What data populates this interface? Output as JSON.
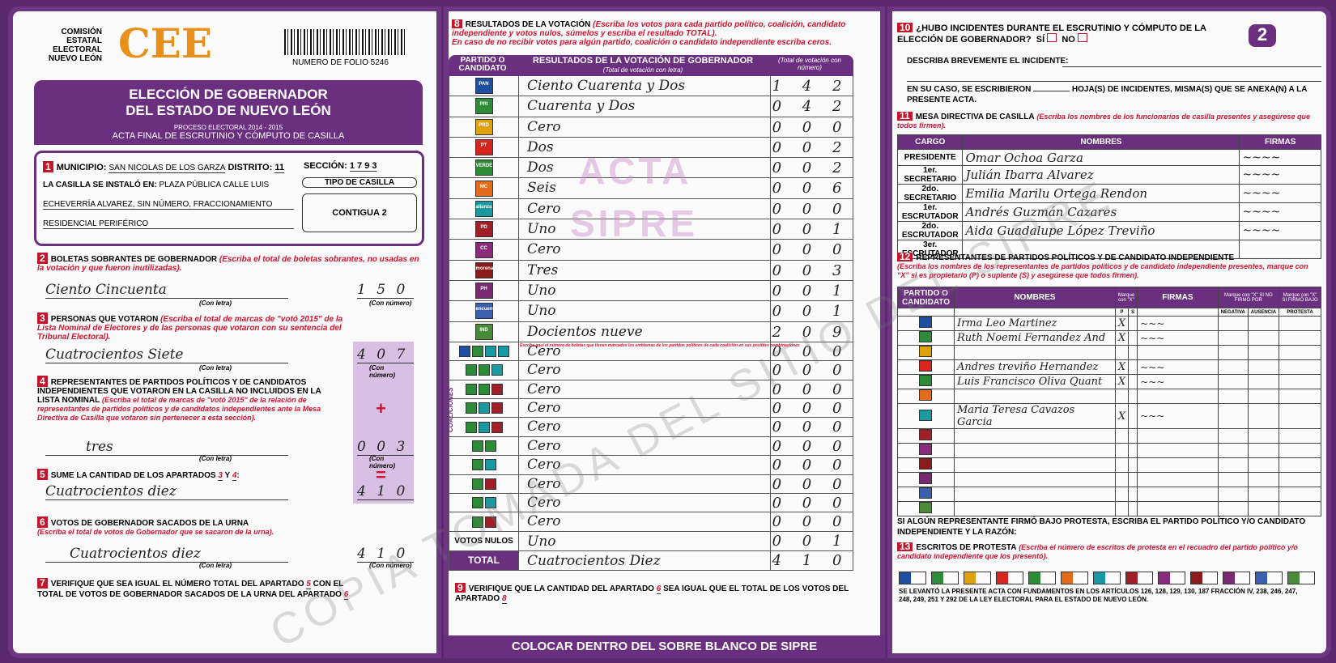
{
  "header": {
    "org": "COMISIÓN ESTATAL ELECTORAL NUEVO LEÓN",
    "logo": "CEE",
    "folio": "NUMERO DE FOLIO 5246",
    "title1": "ELECCIÓN DE GOBERNADOR",
    "title2": "DEL ESTADO DE NUEVO LEÓN",
    "process": "PROCESO ELECTORAL 2014 - 2015",
    "subtitle": "ACTA FINAL DE ESCRUTINIO Y CÓMPUTO DE CASILLA",
    "page_number": "2"
  },
  "s1": {
    "n": "1",
    "municipio_label": "MUNICIPIO:",
    "municipio": "SAN NICOLAS DE LOS GARZA",
    "distrito_label": "DISTRITO:",
    "distrito": "11",
    "seccion_label": "SECCIÓN:",
    "seccion": "1 7 9 3",
    "lugar_label": "LA CASILLA SE INSTALÓ EN:",
    "lugar1": "PLAZA PÚBLICA CALLE LUIS",
    "lugar2": "ECHEVERRÍA ALVAREZ, SIN NÚMERO, FRACCIONAMIENTO",
    "lugar3": "RESIDENCIAL PERIFÉRICO",
    "tipo_label": "TIPO DE CASILLA",
    "tipo": "CONTIGUA 2"
  },
  "s2": {
    "n": "2",
    "title": "BOLETAS SOBRANTES DE GOBERNADOR",
    "note": "(Escriba el total de boletas sobrantes, no usadas en la votación y que fueron inutilizadas).",
    "letra": "Ciento Cincuenta",
    "numero": "1 5 0"
  },
  "s3": {
    "n": "3",
    "title": "PERSONAS QUE VOTARON",
    "note": "(Escriba el total de marcas de \"votó 2015\" de la Lista Nominal de Electores y de las personas que votaron con su sentencia del Tribunal Electoral).",
    "letra": "Cuatrocientos Siete",
    "numero": "4 0 7"
  },
  "s4": {
    "n": "4",
    "title": "REPRESENTANTES DE PARTIDOS POLÍTICOS Y DE CANDIDATOS INDEPENDIENTES QUE VOTARON EN LA CASILLA NO INCLUIDOS EN LA LISTA NOMINAL",
    "note": "(Escriba el total de marcas de \"votó 2015\" de la relación de representantes de partidos políticos y de candidatos independientes ante la Mesa Directiva de Casilla que votaron sin pertenecer a esta sección).",
    "letra": "tres",
    "numero": "0 0 3",
    "plus": "+",
    "equals": "="
  },
  "s5": {
    "n": "5",
    "title": "SUME LA CANTIDAD DE LOS APARTADOS",
    "a": "3",
    "y": "Y",
    "b": "4",
    "letra": "Cuatrocientos diez",
    "numero": "4 1 0"
  },
  "s6": {
    "n": "6",
    "title": "VOTOS DE GOBERNADOR SACADOS DE LA URNA",
    "note": "(Escriba el total de votos de Gobernador que se sacaron de la urna).",
    "letra": "Cuatrocientos diez",
    "numero": "4 1 0"
  },
  "s7": {
    "n": "7",
    "text1": "VERIFIQUE QUE SEA IGUAL EL NÚMERO TOTAL DEL APARTADO",
    "a": "5",
    "text2": "CON EL TOTAL DE VOTOS DE GOBERNADOR SACADOS DE LA URNA DEL APARTADO",
    "b": "6"
  },
  "labels": {
    "con_letra": "(Con letra)",
    "con_numero": "(Con número)"
  },
  "s8": {
    "n": "8",
    "title": "RESULTADOS DE LA VOTACIÓN",
    "note": "(Escriba los votos para cada partido político, coalición, candidato independiente y votos nulos, súmelos y escriba el resultado TOTAL).",
    "note2": "En caso de no recibir votos para algún partido, coalición o candidato independiente escriba ceros.",
    "col1": "PARTIDO O CANDIDATO",
    "col2": "RESULTADOS DE LA VOTACIÓN DE GOBERNADOR",
    "col2sub": "(Total de votación con letra)",
    "col3": "(Total de votación con número)",
    "coaliciones": "COALICIONES",
    "coal_note": "Escriba aquí el número de boletas que tienen marcados los emblemas de los partidos políticos de cada coalición en sus posibles combinaciones",
    "parties": [
      {
        "icon": "pan-logo",
        "label": "PAN",
        "color": "#1f4fa0",
        "letra": "Ciento Cuarenta y Dos",
        "numero": "1 4 2"
      },
      {
        "icon": "pri-logo",
        "label": "PRI",
        "color": "#2f8a3a",
        "letra": "Cuarenta y Dos",
        "numero": "0 4 2"
      },
      {
        "icon": "prd-logo",
        "label": "PRD",
        "color": "#e0a10f",
        "letra": "Cero",
        "numero": "0 0 0"
      },
      {
        "icon": "pt-logo",
        "label": "PT",
        "color": "#d8261e",
        "letra": "Dos",
        "numero": "0 0 2"
      },
      {
        "icon": "verde-logo",
        "label": "VERDE",
        "color": "#2c8b35",
        "letra": "Dos",
        "numero": "0 0 2"
      },
      {
        "icon": "mc-logo",
        "label": "MC",
        "color": "#e36b1b",
        "letra": "Seis",
        "numero": "0 0 6"
      },
      {
        "icon": "nueva-alianza-logo",
        "label": "alianza",
        "color": "#1a9aa0",
        "letra": "Cero",
        "numero": "0 0 0"
      },
      {
        "icon": "pd-logo",
        "label": "PD",
        "color": "#a0202a",
        "letra": "Uno",
        "numero": "0 0 1"
      },
      {
        "icon": "cc-logo",
        "label": "CC",
        "color": "#8a2a7a",
        "letra": "Cero",
        "numero": "0 0 0"
      },
      {
        "icon": "morena-logo",
        "label": "morena",
        "color": "#8b1a1a",
        "letra": "Tres",
        "numero": "0 0 3"
      },
      {
        "icon": "ph-logo",
        "label": "PH",
        "color": "#7a2a70",
        "letra": "Uno",
        "numero": "0 0 1"
      },
      {
        "icon": "encuentro-social-logo",
        "label": "encuentro",
        "color": "#3a5fae",
        "letra": "Uno",
        "numero": "0 0 1"
      },
      {
        "icon": "independiente-logo",
        "label": "IND",
        "color": "#4a8a3a",
        "letra": "Docientos nueve",
        "numero": "2 0 9"
      }
    ],
    "coalitions": [
      {
        "letra": "Cero",
        "numero": "0 0 0"
      },
      {
        "letra": "Cero",
        "numero": "0 0 0"
      },
      {
        "letra": "Cero",
        "numero": "0 0 0"
      },
      {
        "letra": "Cero",
        "numero": "0 0 0"
      },
      {
        "letra": "Cero",
        "numero": "0 0 0"
      },
      {
        "letra": "Cero",
        "numero": "0 0 0"
      },
      {
        "letra": "Cero",
        "numero": "0 0 0"
      },
      {
        "letra": "Cero",
        "numero": "0 0 0"
      },
      {
        "letra": "Cero",
        "numero": "0 0 0"
      },
      {
        "letra": "Cero",
        "numero": "0 0 0"
      }
    ],
    "nulos_label": "VOTOS NULOS",
    "nulos_letra": "Uno",
    "nulos_numero": "0 0 1",
    "total_label": "TOTAL",
    "total_letra": "Cuatrocientos Diez",
    "total_numero": "4 1 0"
  },
  "s9": {
    "n": "9",
    "text1": "VERIFIQUE QUE LA CANTIDAD DEL APARTADO",
    "a": "6",
    "text2": "SEA IGUAL QUE EL TOTAL DE LOS VOTOS DEL APARTADO",
    "b": "8"
  },
  "footer": "COLOCAR DENTRO DEL SOBRE BLANCO DE SIPRE",
  "watermark": {
    "acta": "ACTA",
    "sipre": "SIPRE",
    "copy": "COPIA TOMADA DEL SITIO DEL SIPRE"
  },
  "s10": {
    "n": "10",
    "q": "¿HUBO INCIDENTES DURANTE EL ESCRUTINIO Y CÓMPUTO DE LA ELECCIÓN DE GOBERNADOR?",
    "si": "SÍ",
    "no": "NO",
    "describe": "DESCRIBA BREVEMENTE EL INCIDENTE:",
    "hojas1": "EN SU CASO, SE ESCRIBIERON",
    "hojas_sub": "(Con número)",
    "hojas2": "HOJA(S) DE INCIDENTES, MISMA(S) QUE SE ANEXA(N) A LA PRESENTE ACTA."
  },
  "s11": {
    "n": "11",
    "title": "MESA DIRECTIVA DE CASILLA",
    "note": "(Escriba los nombres de los funcionarios de casilla presentes y asegúrese que todos firmen).",
    "cols": [
      "CARGO",
      "NOMBRES",
      "FIRMAS"
    ],
    "rows": [
      {
        "cargo": "PRESIDENTE",
        "nombre": "Omar Ochoa Garza"
      },
      {
        "cargo": "1er. SECRETARIO",
        "nombre": "Julián Ibarra Alvarez"
      },
      {
        "cargo": "2do. SECRETARIO",
        "nombre": "Emilia Marilu Ortega Rendon"
      },
      {
        "cargo": "1er. ESCRUTADOR",
        "nombre": "Andrés Guzmán Cazares"
      },
      {
        "cargo": "2do. ESCRUTADOR",
        "nombre": "Aida Guadalupe López Treviño"
      },
      {
        "cargo": "3er. ESCRUTADOR",
        "nombre": ""
      }
    ]
  },
  "s12": {
    "n": "12",
    "title": "REPRESENTANTES DE PARTIDOS POLÍTICOS Y DE CANDIDATO INDEPENDIENTE",
    "note": "(Escriba los nombres de los representantes de partidos políticos y de candidato independiente presentes, marque con \"X\" si es propietario (P) o suplente (S) y asegúrese que todos firmen).",
    "cols": {
      "partido": "PARTIDO O CANDIDATO",
      "nombres": "NOMBRES",
      "marque": "Marque con \"X\"",
      "p": "P",
      "s": "S",
      "firmas": "FIRMAS",
      "nofirmo": "Marque con \"X\" SI NO FIRMÓ POR",
      "negativa": "NEGATIVA",
      "ausencia": "AUSENCIA",
      "protesta_h": "Marque con \"X\" SI FIRMÓ BAJO",
      "protesta": "PROTESTA"
    },
    "rows": [
      {
        "nombre": "Irma Leo Martinez",
        "p": "X"
      },
      {
        "nombre": "Ruth Noemi Fernandez And",
        "p": "X"
      },
      {
        "nombre": "",
        "p": ""
      },
      {
        "nombre": "Andres treviño Hernandez",
        "p": "X"
      },
      {
        "nombre": "Luis Francisco Oliva Quant",
        "p": "X"
      },
      {
        "nombre": "",
        "p": ""
      },
      {
        "nombre": "Maria Teresa Cavazos Garcia",
        "p": "X"
      },
      {
        "nombre": "",
        "p": ""
      },
      {
        "nombre": "",
        "p": ""
      },
      {
        "nombre": "",
        "p": ""
      },
      {
        "nombre": "",
        "p": ""
      },
      {
        "nombre": "",
        "p": ""
      },
      {
        "nombre": "",
        "p": ""
      }
    ],
    "protesta_q": "SI ALGÚN REPRESENTANTE FIRMÓ BAJO PROTESTA, ESCRIBA EL PARTIDO POLÍTICO Y/O CANDIDATO INDEPENDIENTE Y LA RAZÓN:"
  },
  "s13": {
    "n": "13",
    "title": "ESCRITOS DE PROTESTA",
    "note": "(Escriba el número de escritos de protesta en el recuadro del partido político y/o candidato independiente que los presentó).",
    "legal": "SE LEVANTÓ LA PRESENTE ACTA CON FUNDAMENTOS EN LOS ARTÍCULOS 126, 128, 129, 130, 187 FRACCIÓN IV, 238, 246, 247, 248, 249, 251 Y 292 DE LA LEY ELECTORAL PARA EL ESTADO DE NUEVO LEÓN."
  }
}
